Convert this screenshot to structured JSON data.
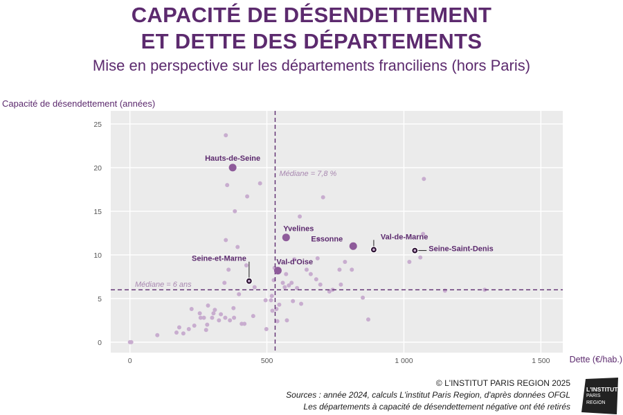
{
  "header": {
    "title_line1": "CAPACITÉ DE DÉSENDETTEMENT",
    "title_line2": "ET DETTE DES DÉPARTEMENTS",
    "subtitle": "Mise en perspective sur les départements franciliens (hors Paris)"
  },
  "chart_data": {
    "type": "scatter",
    "ylabel": "Capacité de désendettement (années)",
    "xlabel": "Dette (€/hab.)",
    "xlim": [
      -70,
      1580
    ],
    "ylim": [
      -1.2,
      26.5
    ],
    "xticks": [
      0,
      500,
      1000,
      1500
    ],
    "xtick_labels": [
      "0",
      "500",
      "1 000",
      "1 500"
    ],
    "yticks": [
      0,
      5,
      10,
      15,
      20,
      25
    ],
    "ytick_labels": [
      "0",
      "5",
      "10",
      "15",
      "20",
      "25"
    ],
    "grid": true,
    "colors": {
      "background": "#ebebeb",
      "grid": "#ffffff",
      "point": "#c8adcf",
      "highlight": "#8e5b9a",
      "highlight_dark": "#5c2a6e",
      "median": "#5c2a6e"
    },
    "medians": [
      {
        "axis": "x",
        "value": 530,
        "label": "Médiane = 7,8 %"
      },
      {
        "axis": "y",
        "value": 6,
        "label": "Médiane = 6 ans"
      }
    ],
    "series": [
      {
        "points": [
          [
            0,
            0
          ],
          [
            5,
            0
          ],
          [
            100,
            0.8
          ],
          [
            170,
            1.1
          ],
          [
            180,
            1.7
          ],
          [
            195,
            1.0
          ],
          [
            215,
            1.5
          ],
          [
            225,
            3.8
          ],
          [
            235,
            1.9
          ],
          [
            255,
            3.3
          ],
          [
            258,
            2.8
          ],
          [
            270,
            2.8
          ],
          [
            278,
            1.4
          ],
          [
            282,
            2.0
          ],
          [
            285,
            4.2
          ],
          [
            300,
            2.8
          ],
          [
            305,
            3.3
          ],
          [
            310,
            3.7
          ],
          [
            325,
            2.5
          ],
          [
            332,
            3.2
          ],
          [
            345,
            6.8
          ],
          [
            348,
            2.8
          ],
          [
            350,
            11.7
          ],
          [
            350,
            23.7
          ],
          [
            355,
            18.0
          ],
          [
            360,
            8.3
          ],
          [
            365,
            2.5
          ],
          [
            378,
            3.9
          ],
          [
            380,
            2.8
          ],
          [
            383,
            15.0
          ],
          [
            393,
            10.9
          ],
          [
            398,
            5.5
          ],
          [
            408,
            2.1
          ],
          [
            418,
            2.1
          ],
          [
            425,
            8.8
          ],
          [
            428,
            16.7
          ],
          [
            450,
            3.0
          ],
          [
            455,
            6.3
          ],
          [
            475,
            18.2
          ],
          [
            495,
            4.8
          ],
          [
            498,
            1.5
          ],
          [
            515,
            4.8
          ],
          [
            518,
            5.3
          ],
          [
            520,
            3.6
          ],
          [
            525,
            7.1
          ],
          [
            528,
            8.5
          ],
          [
            535,
            3.8
          ],
          [
            538,
            2.4
          ],
          [
            545,
            4.3
          ],
          [
            558,
            6.8
          ],
          [
            565,
            6.3
          ],
          [
            570,
            7.8
          ],
          [
            573,
            2.5
          ],
          [
            580,
            6.5
          ],
          [
            590,
            6.8
          ],
          [
            595,
            4.7
          ],
          [
            600,
            9.5
          ],
          [
            610,
            6.2
          ],
          [
            620,
            14.4
          ],
          [
            625,
            4.4
          ],
          [
            645,
            8.3
          ],
          [
            660,
            7.8
          ],
          [
            680,
            7.2
          ],
          [
            685,
            9.6
          ],
          [
            688,
            11.8
          ],
          [
            695,
            6.6
          ],
          [
            705,
            16.6
          ],
          [
            728,
            5.8
          ],
          [
            740,
            6.0
          ],
          [
            765,
            8.3
          ],
          [
            770,
            6.6
          ],
          [
            785,
            9.2
          ],
          [
            810,
            8.3
          ],
          [
            850,
            5.1
          ],
          [
            870,
            2.6
          ],
          [
            1020,
            9.2
          ],
          [
            1060,
            9.7
          ],
          [
            1070,
            12.4
          ],
          [
            1073,
            18.7
          ],
          [
            1150,
            5.9
          ],
          [
            1295,
            6.0
          ]
        ]
      }
    ],
    "highlights": [
      {
        "name": "Hauts-de-Seine",
        "x": 375,
        "y": 20.0
      },
      {
        "name": "Yvelines",
        "x": 570,
        "y": 12.0
      },
      {
        "name": "Essonne",
        "x": 815,
        "y": 11.0
      },
      {
        "name": "Val-de-Marne",
        "x": 890,
        "y": 10.6
      },
      {
        "name": "Seine-Saint-Denis",
        "x": 1040,
        "y": 10.5
      },
      {
        "name": "Seine-et-Marne",
        "x": 435,
        "y": 7.0
      },
      {
        "name": "Val-d'Oise",
        "x": 540,
        "y": 8.2
      }
    ]
  },
  "footer": {
    "copyright": "© L'INSTITUT PARIS REGION 2025",
    "sources": "Sources : année 2024, calculs L'institut Paris Region, d'après données OFGL",
    "note": "Les départements à capacité de désendettement négative ont été retirés"
  },
  "logo": {
    "line1": "L'INSTITUT",
    "line2": "PARIS",
    "line3": "REGION"
  }
}
